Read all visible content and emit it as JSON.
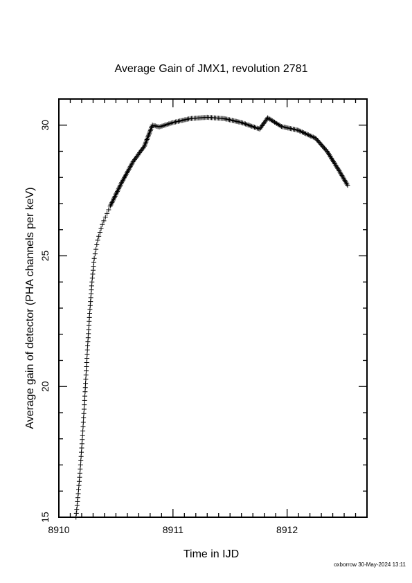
{
  "chart_data": {
    "type": "scatter",
    "marker": "plus",
    "title": "Average Gain of JMX1, revolution 2781",
    "xlabel": "Time in IJD",
    "ylabel": "Average gain of detector (PHA channels per keV)",
    "xlim": [
      8910,
      8912.7
    ],
    "ylim": [
      15,
      31
    ],
    "xticks": [
      8910,
      8911,
      8912
    ],
    "xtick_labels": [
      "8910",
      "8911",
      "8912"
    ],
    "yticks": [
      15,
      20,
      25,
      30
    ],
    "ytick_labels": [
      "15",
      "20",
      "25",
      "30"
    ],
    "grid": false,
    "series": [
      {
        "points": [
          [
            8910.15,
            15.0
          ],
          [
            8910.17,
            15.9
          ],
          [
            8910.19,
            17.0
          ],
          [
            8910.21,
            18.3
          ],
          [
            8910.23,
            19.8
          ],
          [
            8910.25,
            21.4
          ],
          [
            8910.27,
            22.8
          ],
          [
            8910.29,
            24.0
          ],
          [
            8910.31,
            24.9
          ],
          [
            8910.34,
            25.6
          ],
          [
            8910.38,
            26.2
          ],
          [
            8910.45,
            26.9
          ],
          [
            8910.55,
            27.8
          ],
          [
            8910.65,
            28.6
          ],
          [
            8910.75,
            29.2
          ],
          [
            8910.82,
            30.0
          ],
          [
            8910.88,
            29.93
          ],
          [
            8911.0,
            30.1
          ],
          [
            8911.15,
            30.25
          ],
          [
            8911.3,
            30.3
          ],
          [
            8911.45,
            30.25
          ],
          [
            8911.6,
            30.1
          ],
          [
            8911.76,
            29.85
          ],
          [
            8911.83,
            30.28
          ],
          [
            8911.95,
            29.95
          ],
          [
            8912.1,
            29.8
          ],
          [
            8912.25,
            29.5
          ],
          [
            8912.35,
            29.0
          ],
          [
            8912.45,
            28.3
          ],
          [
            8912.53,
            27.7
          ]
        ]
      }
    ]
  },
  "footer": {
    "credit": "oxborrow 30-May-2024 13:11"
  }
}
